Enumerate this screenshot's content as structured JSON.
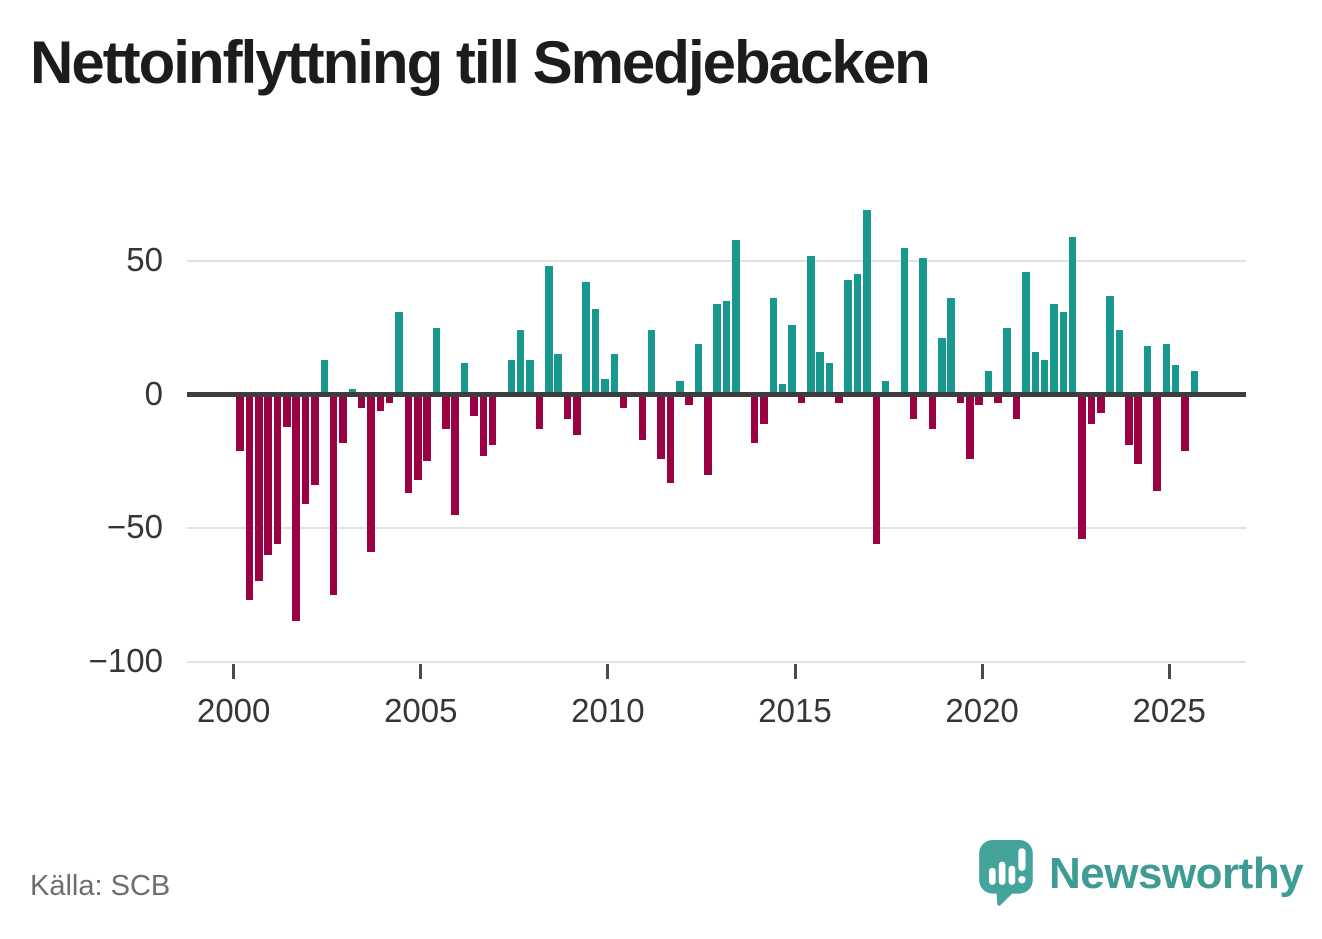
{
  "title": "Nettoinflyttning till Smedjebacken",
  "source": {
    "label": "Källa: SCB"
  },
  "branding": {
    "name": "Newsworthy",
    "icon": "newsworthy-speech-bubble-barchart-icon"
  },
  "colors": {
    "positive": "#18988f",
    "negative": "#9a0243",
    "zero_axis": "#3d3d3d",
    "gridline": "#e2e2e2",
    "tick_text": "#363636",
    "source_text": "#6e6e6e",
    "brand_teal": "#3e9c94",
    "title_text": "#1c1c1c"
  },
  "chart_data": {
    "type": "bar",
    "title": "Nettoinflyttning till Smedjebacken",
    "xlabel": "",
    "ylabel": "",
    "x_unit": "quarter",
    "x_start": "2000-Q1",
    "x_freq": "quarterly",
    "grid": "horizontal",
    "legend": "none",
    "ylim": [
      -100,
      75
    ],
    "y_ticks": [
      50,
      0,
      -50,
      -100
    ],
    "y_tick_labels": [
      "50",
      "0",
      "−50",
      "−100"
    ],
    "x_tick_years": [
      2000,
      2005,
      2010,
      2015,
      2020,
      2025
    ],
    "series": [
      {
        "name": "Nettoinflyttning",
        "values": [
          -21,
          -77,
          -70,
          -60,
          -56,
          -12,
          -85,
          -41,
          -34,
          13,
          -75,
          -18,
          2,
          -5,
          -59,
          -6,
          -3,
          31,
          -37,
          -32,
          -25,
          25,
          -13,
          -45,
          12,
          -8,
          -23,
          -19,
          0,
          13,
          24,
          13,
          -13,
          48,
          15,
          -9,
          -15,
          42,
          32,
          6,
          15,
          -5,
          0,
          -17,
          24,
          -24,
          -33,
          5,
          -4,
          19,
          -30,
          34,
          35,
          58,
          0,
          -18,
          -11,
          36,
          4,
          26,
          -3,
          52,
          16,
          12,
          -3,
          43,
          45,
          69,
          -56,
          5,
          0,
          55,
          -9,
          51,
          -13,
          21,
          36,
          -3,
          -24,
          -4,
          9,
          -3,
          25,
          -9,
          46,
          16,
          13,
          34,
          31,
          59,
          -54,
          -11,
          -7,
          37,
          24,
          -19,
          -26,
          18,
          -36,
          19,
          11,
          -21,
          9
        ]
      }
    ]
  }
}
